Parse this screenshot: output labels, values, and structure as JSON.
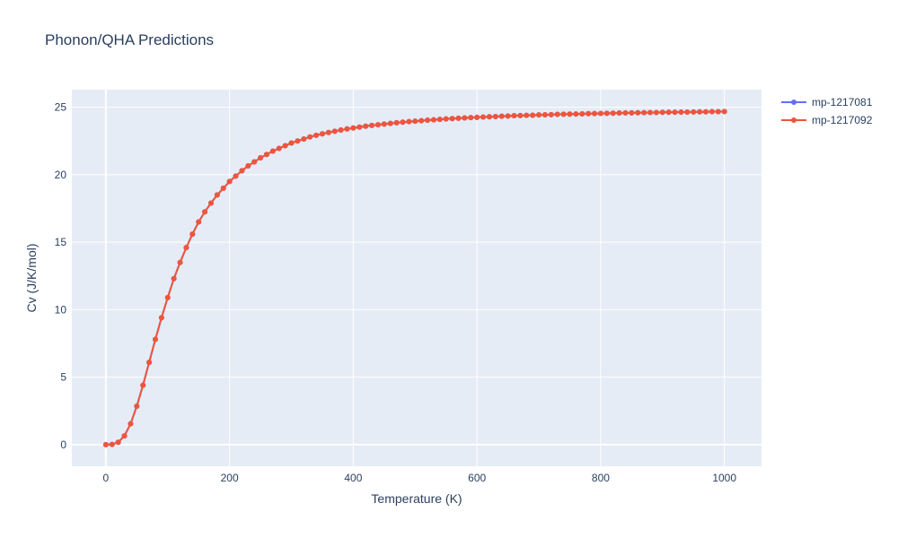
{
  "chart_data": {
    "type": "line",
    "title": "Phonon/QHA Predictions",
    "xlabel": "Temperature (K)",
    "ylabel": "Cv (J/K/mol)",
    "xlim": [
      -55,
      1060
    ],
    "ylim": [
      -1.6,
      26.3
    ],
    "xticks": [
      0,
      200,
      400,
      600,
      800,
      1000
    ],
    "yticks": [
      0,
      5,
      10,
      15,
      20,
      25
    ],
    "grid": true,
    "legend": "right",
    "x": [
      0,
      10,
      20,
      30,
      40,
      50,
      60,
      70,
      80,
      90,
      100,
      110,
      120,
      130,
      140,
      150,
      160,
      170,
      180,
      190,
      200,
      210,
      220,
      230,
      240,
      250,
      260,
      270,
      280,
      290,
      300,
      310,
      320,
      330,
      340,
      350,
      360,
      370,
      380,
      390,
      400,
      410,
      420,
      430,
      440,
      450,
      460,
      470,
      480,
      490,
      500,
      510,
      520,
      530,
      540,
      550,
      560,
      570,
      580,
      590,
      600,
      610,
      620,
      630,
      640,
      650,
      660,
      670,
      680,
      690,
      700,
      710,
      720,
      730,
      740,
      750,
      760,
      770,
      780,
      790,
      800,
      810,
      820,
      830,
      840,
      850,
      860,
      870,
      880,
      890,
      900,
      910,
      920,
      930,
      940,
      950,
      960,
      970,
      980,
      990,
      1000
    ],
    "series": [
      {
        "name": "mp-1217081",
        "color": "#636efa",
        "values": [
          0,
          0.02,
          0.18,
          0.65,
          1.55,
          2.85,
          4.4,
          6.1,
          7.8,
          9.4,
          10.9,
          12.3,
          13.5,
          14.6,
          15.6,
          16.5,
          17.25,
          17.9,
          18.5,
          19.0,
          19.5,
          19.9,
          20.3,
          20.65,
          20.95,
          21.25,
          21.5,
          21.75,
          21.95,
          22.15,
          22.35,
          22.5,
          22.65,
          22.8,
          22.92,
          23.03,
          23.13,
          23.22,
          23.31,
          23.39,
          23.46,
          23.53,
          23.59,
          23.65,
          23.7,
          23.75,
          23.8,
          23.85,
          23.89,
          23.93,
          23.97,
          24.0,
          24.04,
          24.07,
          24.1,
          24.13,
          24.16,
          24.18,
          24.21,
          24.23,
          24.25,
          24.27,
          24.29,
          24.31,
          24.33,
          24.35,
          24.37,
          24.38,
          24.4,
          24.41,
          24.43,
          24.44,
          24.45,
          24.47,
          24.48,
          24.49,
          24.5,
          24.51,
          24.52,
          24.53,
          24.54,
          24.55,
          24.56,
          24.57,
          24.58,
          24.58,
          24.59,
          24.6,
          24.61,
          24.61,
          24.62,
          24.63,
          24.63,
          24.64,
          24.64,
          24.65,
          24.66,
          24.66,
          24.67,
          24.67,
          24.68
        ]
      },
      {
        "name": "mp-1217092",
        "color": "#ef553b",
        "values": [
          0,
          0.02,
          0.18,
          0.65,
          1.55,
          2.85,
          4.4,
          6.1,
          7.8,
          9.4,
          10.9,
          12.3,
          13.5,
          14.6,
          15.6,
          16.5,
          17.25,
          17.9,
          18.5,
          19.0,
          19.5,
          19.9,
          20.3,
          20.65,
          20.95,
          21.25,
          21.5,
          21.75,
          21.95,
          22.15,
          22.35,
          22.5,
          22.65,
          22.8,
          22.92,
          23.03,
          23.13,
          23.22,
          23.31,
          23.39,
          23.46,
          23.53,
          23.59,
          23.65,
          23.7,
          23.75,
          23.8,
          23.85,
          23.89,
          23.93,
          23.97,
          24.0,
          24.04,
          24.07,
          24.1,
          24.13,
          24.16,
          24.18,
          24.21,
          24.23,
          24.25,
          24.27,
          24.29,
          24.31,
          24.33,
          24.35,
          24.37,
          24.38,
          24.4,
          24.41,
          24.43,
          24.44,
          24.45,
          24.47,
          24.48,
          24.49,
          24.5,
          24.51,
          24.52,
          24.53,
          24.54,
          24.55,
          24.56,
          24.57,
          24.58,
          24.58,
          24.59,
          24.6,
          24.61,
          24.61,
          24.62,
          24.63,
          24.63,
          24.64,
          24.64,
          24.65,
          24.66,
          24.66,
          24.67,
          24.67,
          24.68
        ]
      }
    ]
  }
}
